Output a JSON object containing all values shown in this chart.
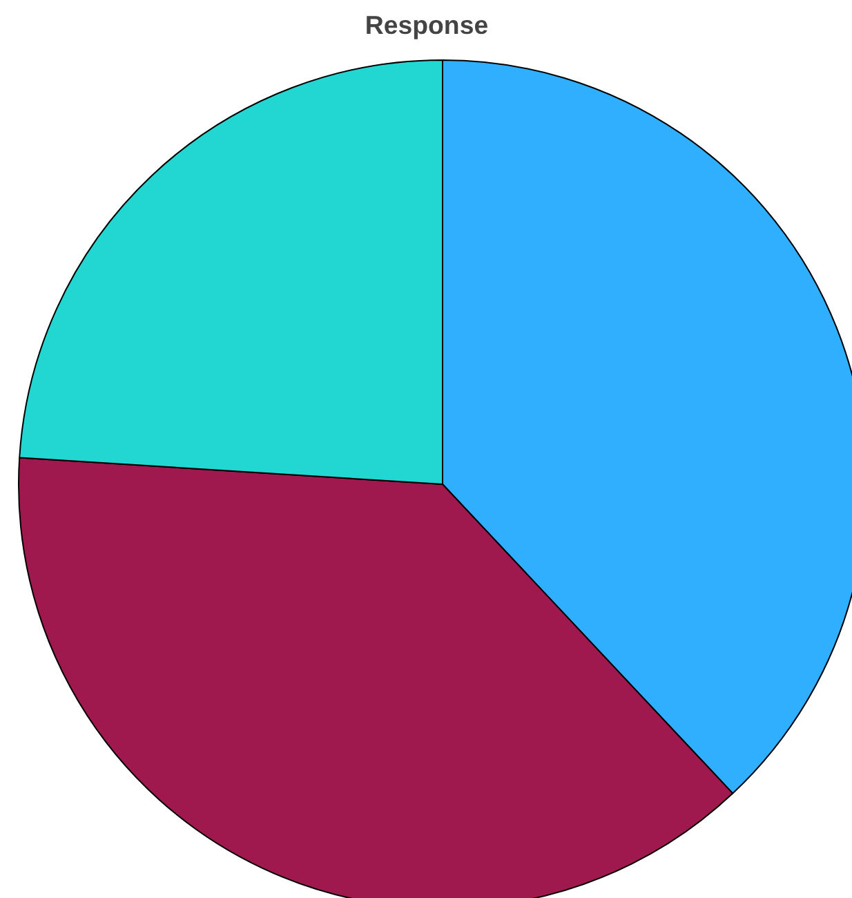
{
  "chart_data": {
    "type": "pie",
    "title": "Response",
    "categories": [
      null,
      null,
      null
    ],
    "values": [
      38,
      38,
      24
    ],
    "colors": [
      "#30aeff",
      "#a0194e",
      "#22d6d2"
    ]
  }
}
